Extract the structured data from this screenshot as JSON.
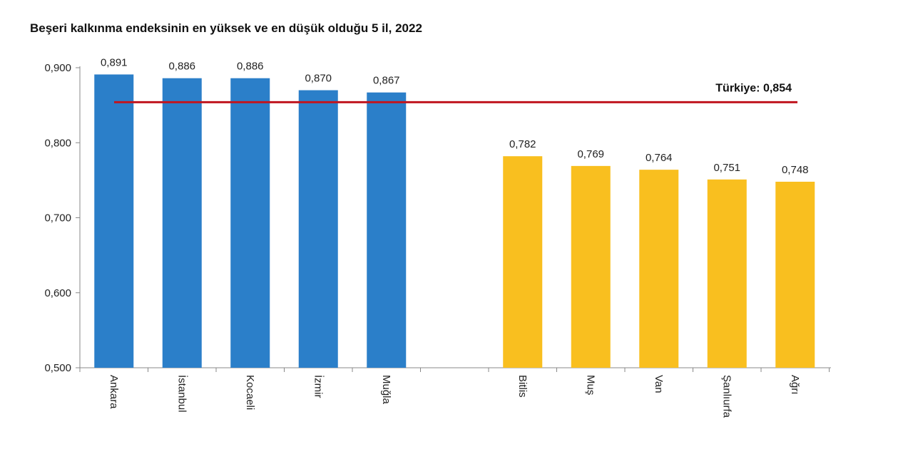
{
  "chart_data": {
    "type": "bar",
    "title": "Beşeri kalkınma endeksinin en yüksek ve en düşük olduğu 5 il, 2022",
    "xlabel": "",
    "ylabel": "",
    "ylim": [
      0.5,
      0.9
    ],
    "yticks": [
      0.5,
      0.6,
      0.7,
      0.8,
      0.9
    ],
    "ytick_labels": [
      "0,500",
      "0,600",
      "0,700",
      "0,800",
      "0,900"
    ],
    "grid": false,
    "legend": "none",
    "groups": [
      {
        "color": "#2b7fc9",
        "categories": [
          "Ankara",
          "İstanbul",
          "Kocaeli",
          "İzmir",
          "Muğla"
        ],
        "values": [
          0.891,
          0.886,
          0.886,
          0.87,
          0.867
        ],
        "labels": [
          "0,891",
          "0,886",
          "0,886",
          "0,870",
          "0,867"
        ]
      },
      {
        "color": "#f9bf1f",
        "categories": [
          "Bitlis",
          "Muş",
          "Van",
          "Şanlıurfa",
          "Ağrı"
        ],
        "values": [
          0.782,
          0.769,
          0.764,
          0.751,
          0.748
        ],
        "labels": [
          "0,782",
          "0,769",
          "0,764",
          "0,751",
          "0,748"
        ]
      }
    ],
    "reference_line": {
      "value": 0.854,
      "label": "Türkiye: 0,854",
      "color": "#c0151f"
    }
  }
}
